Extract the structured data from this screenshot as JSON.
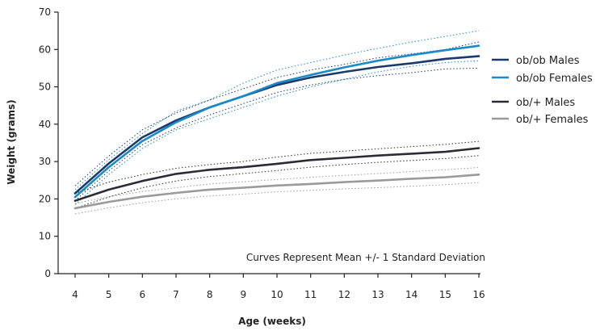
{
  "chart_data": {
    "type": "line",
    "xlabel": "Age (weeks)",
    "ylabel": "Weight (grams)",
    "xlim": [
      4,
      16
    ],
    "ylim": [
      0,
      70
    ],
    "xticks": [
      4,
      5,
      6,
      7,
      8,
      9,
      10,
      11,
      12,
      13,
      14,
      15,
      16
    ],
    "yticks": [
      0,
      10,
      20,
      30,
      40,
      50,
      60,
      70
    ],
    "x": [
      4,
      5,
      6,
      7,
      8,
      9,
      10,
      11,
      12,
      13,
      14,
      15,
      16
    ],
    "annotation": "Curves Represent Mean +/- 1 Standard Deviation",
    "legend_position": "right",
    "series": [
      {
        "name": "ob/ob Males",
        "color": "#1b3a6b",
        "values": [
          21.5,
          29.5,
          36.5,
          41,
          44.5,
          47.5,
          50.5,
          52.5,
          54,
          55.3,
          56.3,
          57.5,
          58.2
        ],
        "upper": [
          23.5,
          31.5,
          38.5,
          43,
          46.5,
          49.5,
          52.5,
          54.5,
          56,
          57.8,
          58.8,
          60,
          62
        ],
        "lower": [
          19.5,
          27.5,
          34.5,
          39,
          42.5,
          45.5,
          48.5,
          50.5,
          52,
          53,
          53.8,
          54.8,
          55
        ]
      },
      {
        "name": "ob/ob Females",
        "color": "#1a8ac8",
        "values": [
          20.5,
          28.5,
          35.5,
          40.5,
          44.5,
          47.5,
          51,
          53.2,
          55.2,
          57,
          58.5,
          59.8,
          61
        ],
        "upper": [
          22.5,
          30.5,
          37.5,
          43.5,
          46.5,
          51,
          54.5,
          56.5,
          58.5,
          60.3,
          62,
          63.5,
          65
        ],
        "lower": [
          18.5,
          26.5,
          33.5,
          38.5,
          41.5,
          44.5,
          47.5,
          50,
          52,
          54,
          55.5,
          56.5,
          57
        ]
      },
      {
        "name": "ob/+ Males",
        "color": "#2b2b33",
        "values": [
          19.5,
          22.5,
          24.8,
          26.7,
          27.8,
          28.5,
          29.4,
          30.4,
          31,
          31.6,
          32.1,
          32.6,
          33.6
        ],
        "upper": [
          21.5,
          24.5,
          26.5,
          28.2,
          29.2,
          30,
          31.2,
          32.2,
          32.8,
          33.4,
          34,
          34.6,
          35.4
        ],
        "lower": [
          17.5,
          20.5,
          23,
          24.8,
          26,
          26.8,
          27.6,
          28.5,
          29.2,
          29.8,
          30.3,
          30.8,
          31.6
        ]
      },
      {
        "name": "ob/+ Females",
        "color": "#9a9a9a",
        "values": [
          17.5,
          19.2,
          20.6,
          21.6,
          22.5,
          23,
          23.6,
          24,
          24.5,
          24.9,
          25.4,
          25.8,
          26.5
        ],
        "upper": [
          18.8,
          20.6,
          22,
          23,
          24,
          24.6,
          25.2,
          25.8,
          26.3,
          26.8,
          27.3,
          27.8,
          28.4
        ],
        "lower": [
          16,
          17.6,
          19,
          20,
          20.8,
          21.3,
          21.9,
          22.3,
          22.7,
          23,
          23.4,
          23.8,
          24.4
        ]
      }
    ]
  }
}
